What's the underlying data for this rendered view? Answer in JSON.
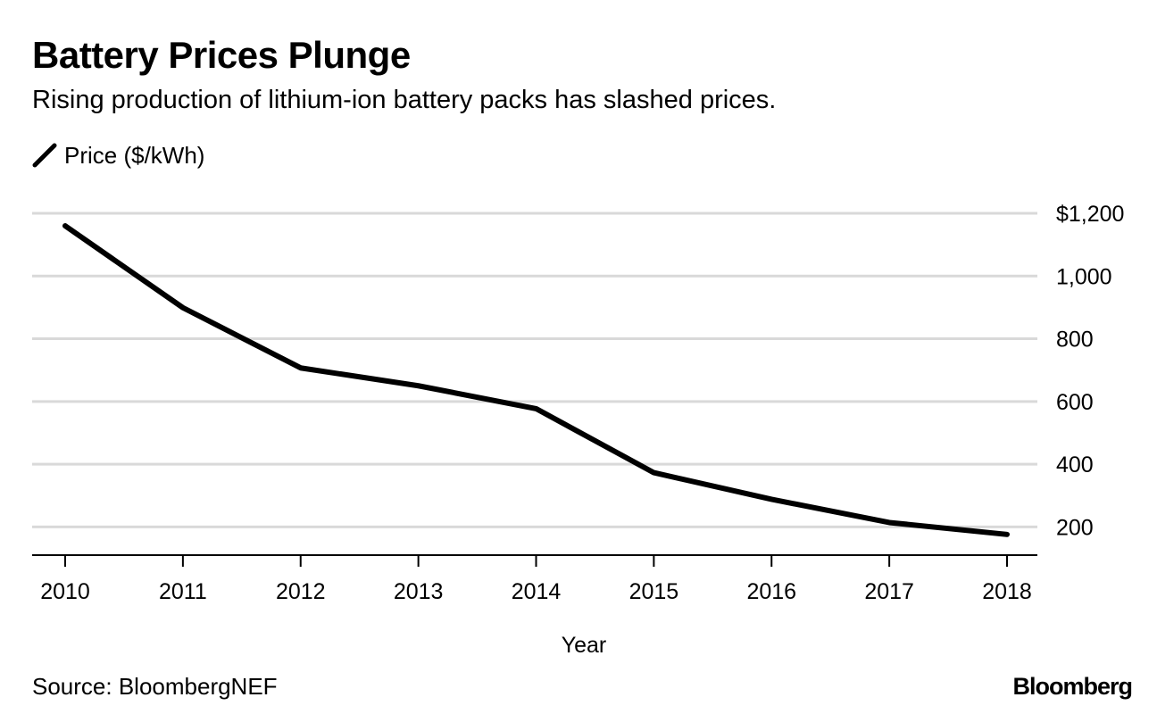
{
  "header": {
    "title": "Battery Prices Plunge",
    "subtitle": "Rising production of lithium-ion battery packs has slashed prices."
  },
  "footer": {
    "source": "Source: BloombergNEF",
    "logo": "Bloomberg"
  },
  "colors": {
    "line": "#000000",
    "grid": "#d9d9d9",
    "axis": "#000000"
  },
  "chart_data": {
    "type": "line",
    "title": "Battery Prices Plunge",
    "subtitle": "Rising production of lithium-ion battery packs has slashed prices.",
    "xlabel": "Year",
    "ylabel": "",
    "x": [
      "2010",
      "2011",
      "2012",
      "2013",
      "2014",
      "2015",
      "2016",
      "2017",
      "2018"
    ],
    "series": [
      {
        "name": "Price ($/kWh)",
        "values": [
          1160,
          899,
          707,
          650,
          577,
          373,
          288,
          214,
          176
        ]
      }
    ],
    "ylim": [
      110,
      1200
    ],
    "yticks": [
      200,
      400,
      600,
      800,
      1000,
      1200
    ],
    "ytick_labels": [
      "200",
      "400",
      "600",
      "800",
      "1,000",
      "$1,200"
    ],
    "y_axis_side": "right",
    "grid": true,
    "legend": "top-left"
  }
}
